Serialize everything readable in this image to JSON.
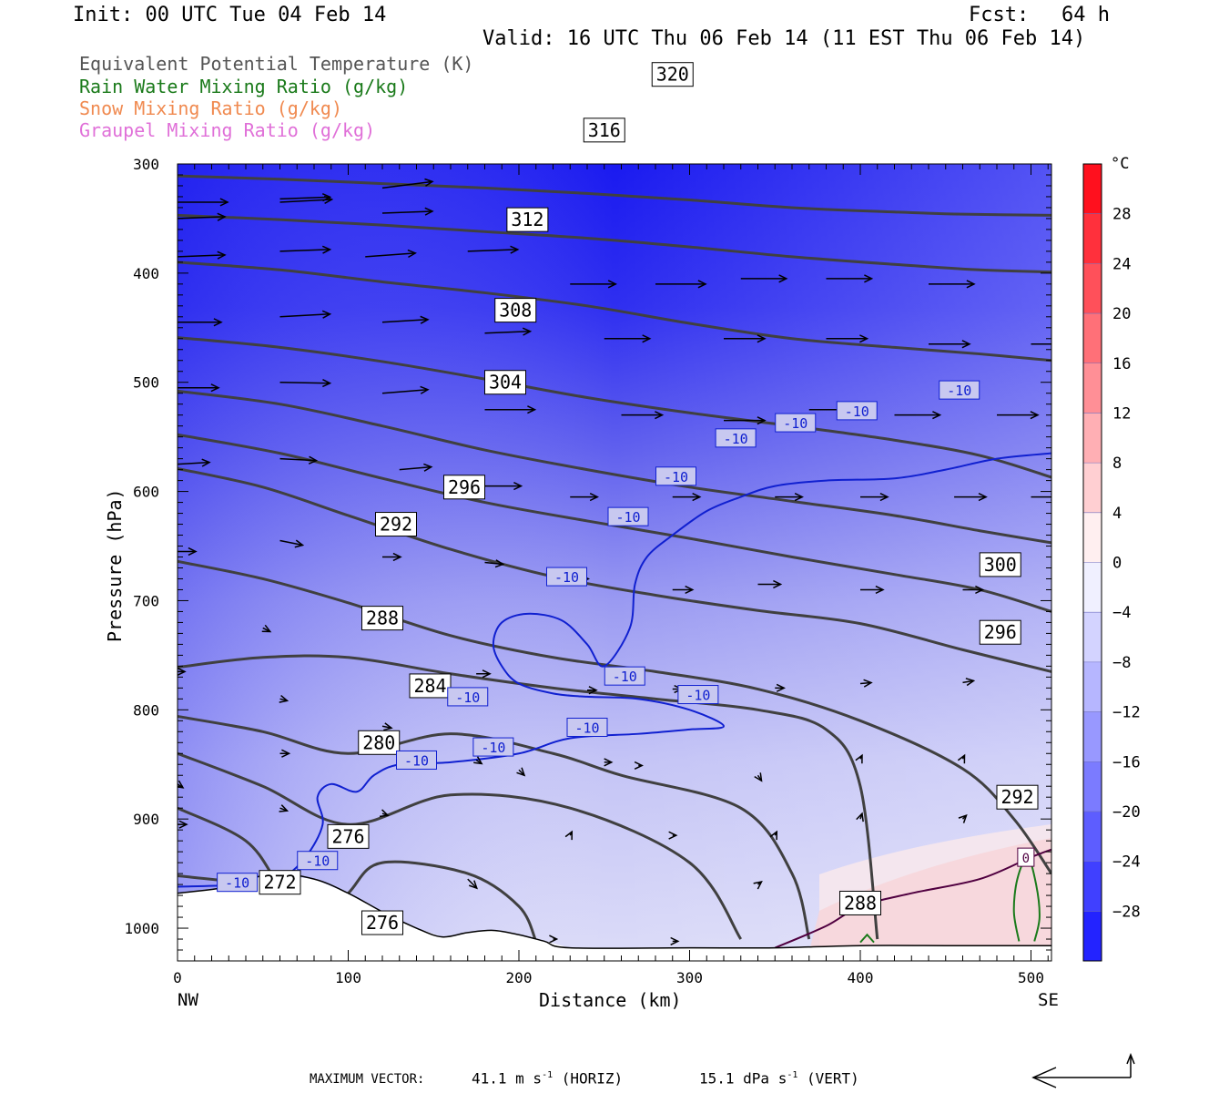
{
  "header": {
    "init": "Init: 00 UTC Tue 04 Feb 14",
    "fcst_label": "Fcst:",
    "fcst_value": "64 h",
    "valid": "Valid: 16 UTC Thu 06 Feb 14 (11 EST Thu 06 Feb 14)"
  },
  "legend": [
    {
      "label": "Equivalent Potential Temperature (K)",
      "color": "#555555"
    },
    {
      "label": "Rain Water Mixing Ratio (g/kg)",
      "color": "#1a7a1a"
    },
    {
      "label": "Snow Mixing Ratio (g/kg)",
      "color": "#f08a50"
    },
    {
      "label": "Graupel Mixing Ratio (g/kg)",
      "color": "#e070d8"
    }
  ],
  "chart_data": {
    "type": "heatmap",
    "description_fill": "temperature (°C) filled contours",
    "xlabel": "Distance (km)",
    "ylabel": "Pressure (hPa)",
    "xlim": [
      0,
      512
    ],
    "ylim": [
      1030,
      300
    ],
    "x_ticks": [
      0,
      100,
      200,
      300,
      400,
      500
    ],
    "y_ticks": [
      300,
      400,
      500,
      600,
      700,
      800,
      900,
      1000
    ],
    "x_end_labels": {
      "left": "NW",
      "right": "SE"
    },
    "colorbar": {
      "unit": "°C",
      "tick_labels": [
        "28",
        "24",
        "20",
        "16",
        "12",
        "8",
        "4",
        "0",
        "−4",
        "−8",
        "−12",
        "−16",
        "−20",
        "−24",
        "−28"
      ],
      "range": [
        -32,
        32
      ],
      "interval": 4
    },
    "theta_e_contours": [
      {
        "value": "320",
        "points": [
          [
            0,
            311
          ],
          [
            60,
            314
          ],
          [
            120,
            318
          ],
          [
            180,
            322
          ],
          [
            240,
            327
          ],
          [
            300,
            333
          ],
          [
            360,
            340
          ],
          [
            420,
            344
          ],
          [
            460,
            346
          ],
          [
            512,
            347
          ]
        ]
      },
      {
        "value": "316",
        "points": [
          [
            0,
            347
          ],
          [
            60,
            351
          ],
          [
            120,
            356
          ],
          [
            180,
            362
          ],
          [
            240,
            368
          ],
          [
            300,
            376
          ],
          [
            360,
            385
          ],
          [
            420,
            392
          ],
          [
            470,
            397
          ],
          [
            512,
            399
          ]
        ]
      },
      {
        "value": "312",
        "points": [
          [
            0,
            390
          ],
          [
            60,
            397
          ],
          [
            120,
            408
          ],
          [
            180,
            418
          ],
          [
            240,
            430
          ],
          [
            300,
            446
          ],
          [
            360,
            460
          ],
          [
            420,
            468
          ],
          [
            470,
            474
          ],
          [
            512,
            480
          ]
        ]
      },
      {
        "value": "308",
        "points": [
          [
            0,
            459
          ],
          [
            60,
            468
          ],
          [
            120,
            481
          ],
          [
            180,
            497
          ],
          [
            240,
            514
          ],
          [
            300,
            528
          ],
          [
            360,
            540
          ],
          [
            420,
            553
          ],
          [
            470,
            567
          ],
          [
            512,
            587
          ]
        ]
      },
      {
        "value": "304",
        "points": [
          [
            0,
            508
          ],
          [
            60,
            520
          ],
          [
            120,
            540
          ],
          [
            180,
            562
          ],
          [
            240,
            580
          ],
          [
            300,
            596
          ],
          [
            360,
            609
          ],
          [
            420,
            622
          ],
          [
            470,
            636
          ],
          [
            512,
            647
          ]
        ]
      },
      {
        "value": "300",
        "points": [
          [
            0,
            548
          ],
          [
            60,
            565
          ],
          [
            120,
            588
          ],
          [
            180,
            610
          ],
          [
            240,
            627
          ],
          [
            300,
            643
          ],
          [
            360,
            660
          ],
          [
            420,
            676
          ],
          [
            470,
            690
          ],
          [
            512,
            710
          ]
        ]
      },
      {
        "value": "296",
        "points": [
          [
            0,
            579
          ],
          [
            50,
            596
          ],
          [
            100,
            622
          ],
          [
            160,
            653
          ],
          [
            220,
            678
          ],
          [
            280,
            695
          ],
          [
            340,
            709
          ],
          [
            400,
            721
          ],
          [
            460,
            745
          ],
          [
            512,
            765
          ]
        ]
      },
      {
        "value": "292",
        "points": [
          [
            0,
            664
          ],
          [
            50,
            680
          ],
          [
            100,
            702
          ],
          [
            160,
            732
          ],
          [
            220,
            752
          ],
          [
            280,
            765
          ],
          [
            340,
            781
          ],
          [
            400,
            810
          ],
          [
            460,
            854
          ],
          [
            490,
            900
          ],
          [
            512,
            950
          ]
        ]
      },
      {
        "value": "288",
        "points": [
          [
            0,
            761
          ],
          [
            50,
            752
          ],
          [
            100,
            752
          ],
          [
            160,
            767
          ],
          [
            220,
            780
          ],
          [
            280,
            790
          ],
          [
            340,
            800
          ],
          [
            380,
            818
          ],
          [
            400,
            870
          ],
          [
            410,
            1010
          ]
        ]
      },
      {
        "value": "284",
        "points": [
          [
            0,
            806
          ],
          [
            50,
            820
          ],
          [
            100,
            840
          ],
          [
            160,
            822
          ],
          [
            220,
            840
          ],
          [
            260,
            860
          ],
          [
            330,
            890
          ],
          [
            360,
            950
          ],
          [
            370,
            1010
          ]
        ]
      },
      {
        "value": "280",
        "points": [
          [
            0,
            840
          ],
          [
            50,
            870
          ],
          [
            100,
            905
          ],
          [
            160,
            878
          ],
          [
            230,
            890
          ],
          [
            300,
            940
          ],
          [
            330,
            1010
          ]
        ]
      },
      {
        "value": "276",
        "points": [
          [
            0,
            890
          ],
          [
            40,
            920
          ],
          [
            60,
            962
          ],
          [
            80,
            1000
          ],
          [
            100,
            968
          ],
          [
            120,
            940
          ],
          [
            170,
            950
          ],
          [
            200,
            980
          ],
          [
            210,
            1012
          ]
        ]
      },
      {
        "value": "272",
        "points": [
          [
            0,
            952
          ],
          [
            40,
            958
          ],
          [
            60,
            958
          ]
        ]
      }
    ],
    "isotherm_minus10_labels": [
      "-10",
      "-10",
      "-10",
      "-10",
      "-10",
      "-10",
      "-10",
      "-10",
      "-10",
      "-10",
      "-10",
      "-10",
      "-10",
      "-10",
      "-10"
    ],
    "isotherm_zero_label": "0",
    "max_vector": {
      "label": "MAXIMUM VECTOR:",
      "horiz_value": "41.1 m s",
      "horiz_exp": "-1",
      "horiz_tag": "(HORIZ)",
      "vert_value": "15.1 dPa s",
      "vert_exp": "-1",
      "vert_tag": "(VERT)"
    },
    "colors": {
      "contour": "#404040",
      "isotherm_cold": "#1020d0",
      "isotherm_zero": "#500040",
      "rain": "#1a7a1a"
    }
  }
}
